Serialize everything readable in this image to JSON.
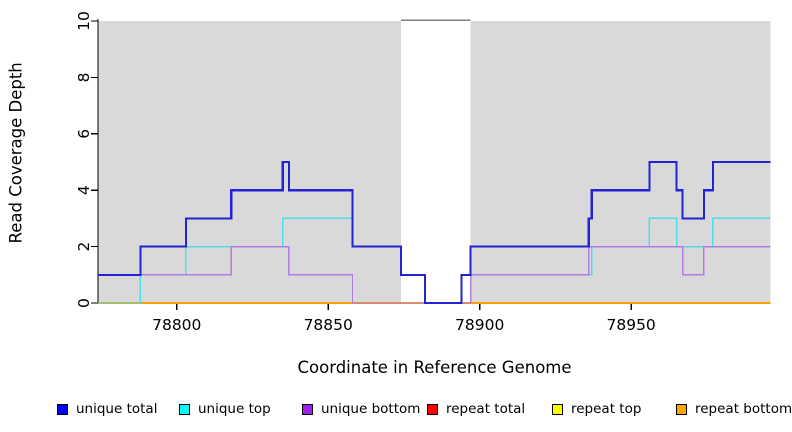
{
  "figure": {
    "ylabel": "Read Coverage Depth",
    "xlabel": "Coordinate in Reference Genome"
  },
  "chart_data": {
    "type": "line",
    "title": "",
    "xlabel": "Coordinate in Reference Genome",
    "ylabel": "Read Coverage Depth",
    "xlim": [
      78774,
      78996
    ],
    "ylim": [
      0,
      10
    ],
    "x_ticks": [
      78800,
      78850,
      78900,
      78950
    ],
    "y_ticks": [
      0,
      2,
      4,
      6,
      8,
      10
    ],
    "grid": false,
    "step_interpolation": true,
    "plot_background": "#ffffff",
    "shaded_region_color": "#d9d9d9",
    "shaded_regions": [
      [
        78774,
        78874
      ],
      [
        78897,
        78996
      ]
    ],
    "gap_region": [
      78874,
      78897
    ],
    "gap_border_color": "#808080",
    "axis_color": "#000000",
    "series": [
      {
        "name": "repeat total",
        "color": "#e00000",
        "width": 1.1,
        "points": [
          [
            78774,
            0
          ],
          [
            78996,
            0
          ]
        ]
      },
      {
        "name": "repeat top",
        "color": "#ffff00",
        "width": 1.1,
        "points": [
          [
            78774,
            0
          ],
          [
            78996,
            0
          ]
        ]
      },
      {
        "name": "repeat bottom",
        "color": "#ff9f00",
        "width": 1.7,
        "points": [
          [
            78774,
            0
          ],
          [
            78996,
            0
          ]
        ]
      },
      {
        "name": "unique top",
        "color": "#4fdde8",
        "width": 1.4,
        "points": [
          [
            78774,
            0
          ],
          [
            78788,
            1
          ],
          [
            78803,
            2
          ],
          [
            78835,
            3
          ],
          [
            78858,
            2
          ],
          [
            78874,
            1
          ],
          [
            78882,
            0
          ],
          [
            78894,
            1
          ],
          [
            78937,
            2
          ],
          [
            78956,
            3
          ],
          [
            78965,
            2
          ],
          [
            78977,
            3
          ],
          [
            78996,
            3
          ]
        ]
      },
      {
        "name": "unique bottom",
        "color": "#b27be6",
        "width": 1.4,
        "points": [
          [
            78774,
            1
          ],
          [
            78818,
            2
          ],
          [
            78837,
            1
          ],
          [
            78858,
            0
          ],
          [
            78897,
            1
          ],
          [
            78936,
            2
          ],
          [
            78967,
            1
          ],
          [
            78974,
            2
          ],
          [
            78996,
            2
          ]
        ]
      },
      {
        "name": "unique total",
        "color": "#2323d4",
        "width": 2.1,
        "points": [
          [
            78774,
            1
          ],
          [
            78788,
            2
          ],
          [
            78803,
            3
          ],
          [
            78818,
            4
          ],
          [
            78835,
            5
          ],
          [
            78837,
            4
          ],
          [
            78858,
            2
          ],
          [
            78874,
            1
          ],
          [
            78882,
            0
          ],
          [
            78894,
            1
          ],
          [
            78897,
            2
          ],
          [
            78936,
            3
          ],
          [
            78937,
            4
          ],
          [
            78956,
            5
          ],
          [
            78965,
            4
          ],
          [
            78967,
            3
          ],
          [
            78974,
            4
          ],
          [
            78977,
            5
          ],
          [
            78996,
            5
          ]
        ]
      }
    ],
    "legend_position": "bottom"
  },
  "legend": {
    "items": [
      {
        "label": "unique total",
        "color": "#0000ee"
      },
      {
        "label": "unique top",
        "color": "#00ffff"
      },
      {
        "label": "unique bottom",
        "color": "#a020f0"
      },
      {
        "label": "repeat total",
        "color": "#ff0000"
      },
      {
        "label": "repeat top",
        "color": "#ffff00"
      },
      {
        "label": "repeat bottom",
        "color": "#ffa500"
      }
    ]
  }
}
